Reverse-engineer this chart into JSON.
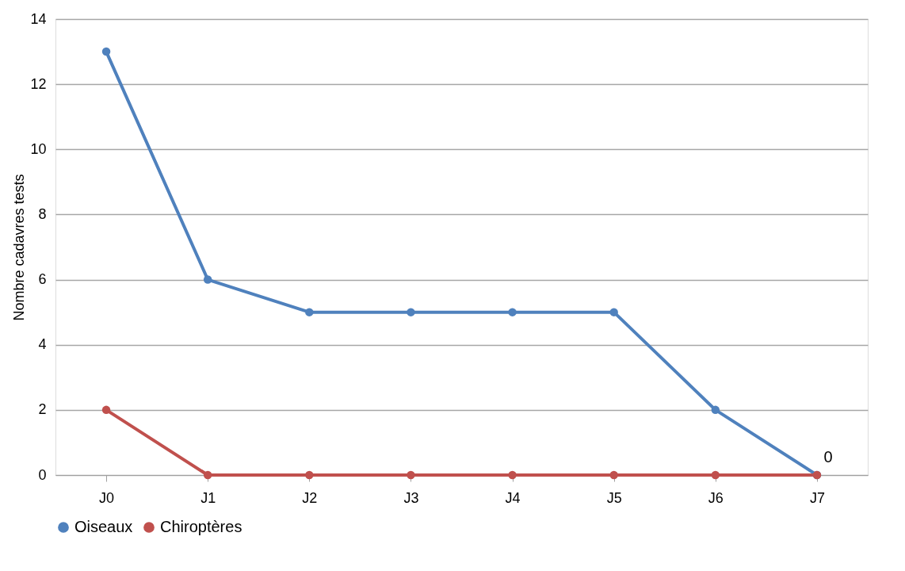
{
  "chart_data": {
    "type": "line",
    "ylabel": "Nombre cadavres tests",
    "categories": [
      "J0",
      "J1",
      "J2",
      "J3",
      "J4",
      "J5",
      "J6",
      "J7"
    ],
    "series": [
      {
        "name": "Oiseaux",
        "color": "#4f81bd",
        "values": [
          13,
          6,
          5,
          5,
          5,
          5,
          2,
          0
        ],
        "value_labels": [
          null,
          null,
          null,
          null,
          null,
          null,
          null,
          "0"
        ]
      },
      {
        "name": "Chiroptères",
        "color": "#c0504d",
        "values": [
          2,
          0,
          0,
          0,
          0,
          0,
          0,
          0
        ]
      }
    ],
    "ylim": [
      0,
      14
    ],
    "yticks": [
      0,
      2,
      4,
      6,
      8,
      10,
      12,
      14
    ],
    "grid": "y",
    "legend": "bottom",
    "marker": "circle",
    "line_style": "solid"
  }
}
